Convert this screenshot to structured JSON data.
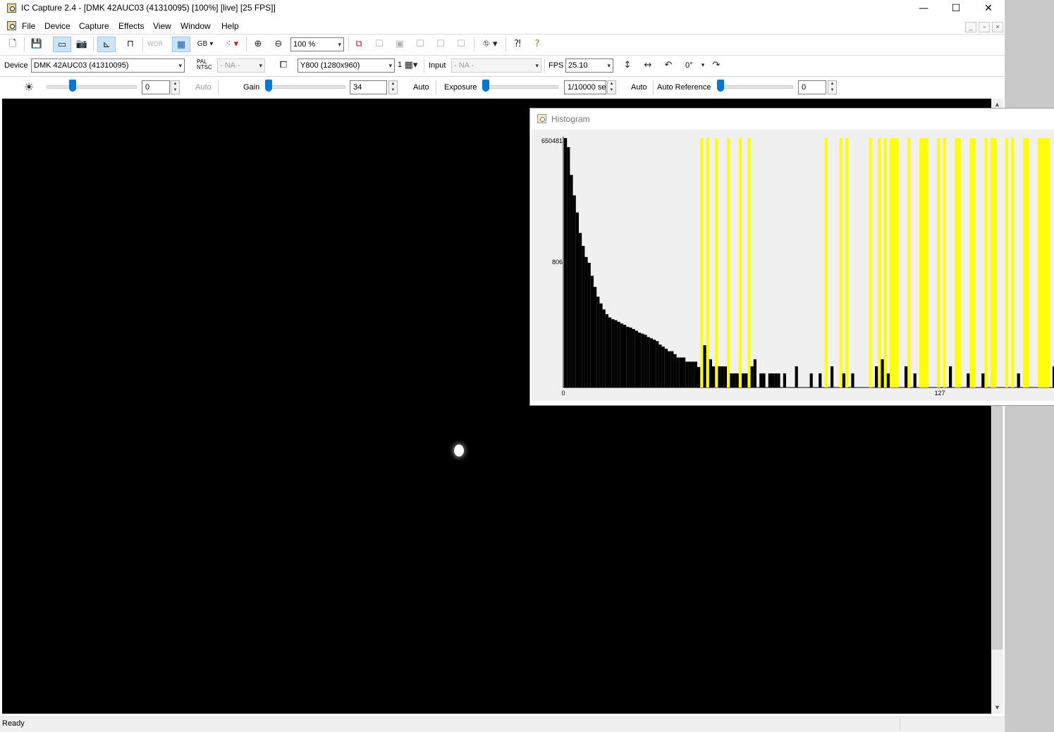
{
  "window": {
    "title": "IC Capture 2.4 - [DMK 42AUC03 (41310095) [100%]  [live]  [25 FPS]]",
    "minimize_glyph": "—",
    "maximize_glyph": "☐",
    "close_glyph": "✕"
  },
  "menu": {
    "items": [
      "File",
      "Device",
      "Capture",
      "Effects",
      "View",
      "Window",
      "Help"
    ],
    "mdi_glyphs": [
      "_",
      "▫",
      "×"
    ]
  },
  "toolbar1": {
    "zoom_value": "100 %",
    "icons": [
      "new-icon",
      "save-icon",
      "live-camera-icon",
      "snapshot-icon",
      "histogram-icon",
      "trigger-icon",
      "wdr-icon",
      "color-icon",
      "gb-icon",
      "roi-icon",
      "zoom-in-icon",
      "zoom-out-icon",
      "property-icon",
      "help-context-icon",
      "help-icon"
    ],
    "wdr_label": "WDR",
    "gb_label": "GB"
  },
  "toolbar2": {
    "device_label": "Device",
    "device_value": "DMK 42AUC03 (41310095)",
    "pal_label_1": "PAL",
    "pal_label_2": "NTSC",
    "video_norm_value": "- NA -",
    "format_value": "Y800 (1280x960)",
    "binning_value": "1",
    "input_label": "Input",
    "input_value": "- NA -",
    "fps_label": "FPS",
    "fps_value": "25.10",
    "rotation_value": "0°"
  },
  "toolbar3": {
    "brightness_value": "0",
    "brightness_auto_label": "Auto",
    "gain_label": "Gain",
    "gain_value": "34",
    "gain_auto_label": "Auto",
    "exposure_label": "Exposure",
    "exposure_value": "1/10000 se",
    "exposure_auto_label": "Auto",
    "auto_reference_label": "Auto Reference",
    "auto_reference_value": "0",
    "brightness_level": 0.25,
    "gain_level": 0.0,
    "exposure_level": 0.0,
    "auto_reference_level": 0.0
  },
  "status": {
    "text": "Ready"
  },
  "histogram": {
    "title": "Histogram",
    "y_labels": [
      "650481",
      "806"
    ],
    "x_labels": [
      "0",
      "127"
    ],
    "colors": {
      "bars": "#000000",
      "saturation": "#ffff00",
      "background": "#f0f0f0"
    },
    "chart_data": {
      "type": "bar",
      "y_scale": "log",
      "ylim": [
        1,
        650481
      ],
      "x_start": 0,
      "bin_values": [
        650481,
        400000,
        90000,
        30000,
        12000,
        4000,
        2000,
        1100,
        806,
        400,
        220,
        130,
        90,
        65,
        50,
        42,
        38,
        36,
        33,
        30,
        28,
        25,
        24,
        22,
        20,
        18,
        17,
        16,
        14,
        13,
        12,
        11,
        9,
        8,
        7,
        6,
        6,
        5,
        4,
        4,
        4,
        3,
        3,
        3,
        3,
        2,
        2,
        2,
        2,
        2,
        2,
        2,
        2,
        2,
        2,
        2,
        2,
        1,
        1,
        1,
        1,
        1,
        1,
        1,
        1,
        1,
        1,
        1,
        1,
        1,
        1,
        1,
        1,
        1,
        1,
        1,
        1,
        1,
        1,
        1,
        1,
        1,
        1,
        1,
        1,
        1,
        1,
        1,
        1,
        1,
        1,
        1,
        1,
        1,
        1,
        1,
        1,
        1,
        1,
        1,
        1,
        1,
        1,
        1,
        1,
        1,
        1,
        1,
        1,
        1,
        1,
        1,
        1,
        1,
        1,
        1,
        1,
        1,
        1,
        1,
        1,
        1,
        1,
        1,
        1,
        1,
        1,
        1,
        1,
        1,
        1,
        1,
        1,
        1,
        1,
        1,
        1,
        1,
        1,
        1,
        1,
        1,
        1,
        1,
        1,
        1,
        1,
        1,
        1,
        1,
        1,
        1,
        1,
        1,
        1,
        1,
        1,
        1,
        1,
        1,
        1,
        1,
        1,
        1,
        1,
        1
      ],
      "saturated_bins": [
        46,
        48,
        51,
        55,
        59,
        62,
        88,
        93,
        95,
        103,
        106,
        108,
        110,
        111,
        112,
        116,
        120,
        121,
        122,
        126,
        128,
        132,
        133,
        137,
        138,
        142,
        144,
        145,
        149,
        151,
        155,
        156,
        160,
        161,
        162,
        163
      ],
      "sparse_bins": {
        "47": 6,
        "49": 4,
        "50": 3,
        "52": 3,
        "53": 3,
        "54": 3,
        "56": 2,
        "57": 2,
        "58": 2,
        "60": 2,
        "61": 2,
        "63": 3,
        "64": 4,
        "66": 2,
        "67": 2,
        "69": 2,
        "70": 2,
        "71": 2,
        "72": 2,
        "74": 2,
        "78": 3,
        "83": 2,
        "86": 2,
        "90": 3,
        "94": 2,
        "97": 2,
        "105": 3,
        "107": 4,
        "109": 2,
        "115": 3,
        "118": 2,
        "130": 3,
        "136": 2,
        "141": 2,
        "153": 2,
        "165": 3
      },
      "xlabel_ticks": [
        0,
        127
      ],
      "ylabel_ticks": [
        650481,
        806
      ]
    }
  }
}
